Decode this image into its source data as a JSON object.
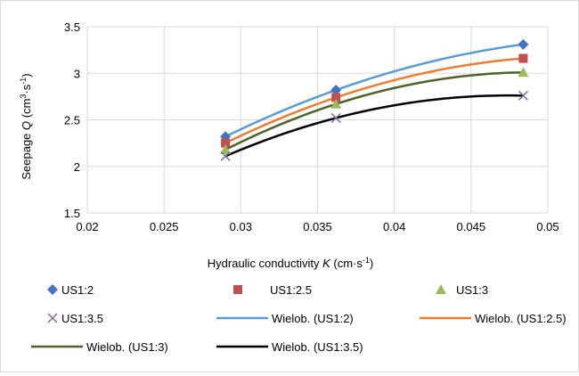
{
  "chart_data": {
    "type": "scatter",
    "xlabel": {
      "pre": "Hydraulic conductivity ",
      "var": "K",
      "post": " (cm·s",
      "sup": "-1",
      "close": ")"
    },
    "ylabel": {
      "pre": "Seepage ",
      "var": "Q",
      "post": " (cm",
      "sup1": "3",
      "mid": "·s",
      "sup2": "-1",
      "close": ")"
    },
    "xlim": [
      0.02,
      0.05
    ],
    "ylim": [
      1.5,
      3.5
    ],
    "xticks": [
      "0.02",
      "0.025",
      "0.03",
      "0.035",
      "0.04",
      "0.045",
      "0.05"
    ],
    "yticks": [
      "1.5",
      "2",
      "2.5",
      "3",
      "3.5"
    ],
    "grid": true,
    "legend_position": "bottom",
    "series": [
      {
        "name": "US1:2",
        "marker": "diamond",
        "color": "#4472c4",
        "x": [
          0.029,
          0.0362,
          0.0484
        ],
        "y": [
          2.32,
          2.82,
          3.31
        ]
      },
      {
        "name": "US1:2.5",
        "marker": "square",
        "color": "#c0504d",
        "x": [
          0.029,
          0.0362,
          0.0484
        ],
        "y": [
          2.25,
          2.74,
          3.16
        ]
      },
      {
        "name": "US1:3",
        "marker": "triangle",
        "color": "#9bbb59",
        "x": [
          0.029,
          0.0362,
          0.0484
        ],
        "y": [
          2.18,
          2.67,
          3.01
        ]
      },
      {
        "name": "US1:3.5",
        "marker": "x",
        "color": "#7f6a9e",
        "x": [
          0.029,
          0.0362,
          0.0484
        ],
        "y": [
          2.11,
          2.52,
          2.76
        ]
      }
    ],
    "trendlines": [
      {
        "name": "Wielob. (US1:2)",
        "color": "#5b9bd5",
        "x": [
          0.029,
          0.0362,
          0.0484
        ],
        "y": [
          2.32,
          2.82,
          3.31
        ]
      },
      {
        "name": "Wielob. (US1:2.5)",
        "color": "#ed7d31",
        "x": [
          0.029,
          0.0362,
          0.0484
        ],
        "y": [
          2.25,
          2.74,
          3.16
        ]
      },
      {
        "name": "Wielob. (US1:3)",
        "color": "#4e6228",
        "x": [
          0.029,
          0.0362,
          0.0484
        ],
        "y": [
          2.18,
          2.67,
          3.01
        ]
      },
      {
        "name": "Wielob. (US1:3.5)",
        "color": "#000000",
        "x": [
          0.029,
          0.0362,
          0.0484
        ],
        "y": [
          2.11,
          2.52,
          2.76
        ]
      }
    ]
  }
}
